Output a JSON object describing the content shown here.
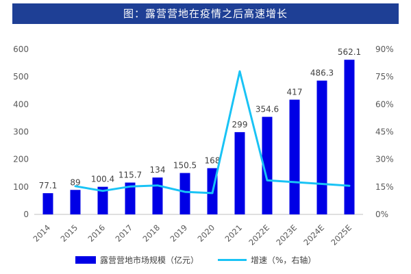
{
  "title": "图：露营营地在疫情之后高速增长",
  "chart_data": {
    "type": "bar",
    "categories": [
      "2014",
      "2015",
      "2016",
      "2017",
      "2018",
      "2019",
      "2020",
      "2021",
      "2022E",
      "2023E",
      "2024E",
      "2025E"
    ],
    "series": [
      {
        "name": "露营营地市场规模（亿元）",
        "type": "bar",
        "axis": "left",
        "color": "#0000e6",
        "values": [
          77.1,
          89,
          100.4,
          115.7,
          134,
          150.5,
          168,
          299,
          354.6,
          417,
          486.3,
          562.1
        ],
        "labels": [
          "77.1",
          "89",
          "100.4",
          "115.7",
          "134",
          "150.5",
          "168",
          "299",
          "354.6",
          "417",
          "486.3",
          "562.1"
        ]
      },
      {
        "name": "增速（%，右轴）",
        "type": "line",
        "axis": "right",
        "color": "#19c3f5",
        "values": [
          null,
          15.4,
          12.8,
          15.2,
          15.8,
          12.3,
          11.6,
          78,
          18.6,
          17.6,
          16.6,
          15.6
        ]
      }
    ],
    "y_left": {
      "min": 0,
      "max": 600,
      "ticks": [
        "0",
        "100",
        "200",
        "300",
        "400",
        "500",
        "600"
      ]
    },
    "y_right": {
      "min": 0,
      "max": 90,
      "ticks": [
        "0%",
        "15%",
        "30%",
        "45%",
        "60%",
        "75%",
        "90%"
      ]
    },
    "legend_position": "bottom",
    "grid": false
  }
}
